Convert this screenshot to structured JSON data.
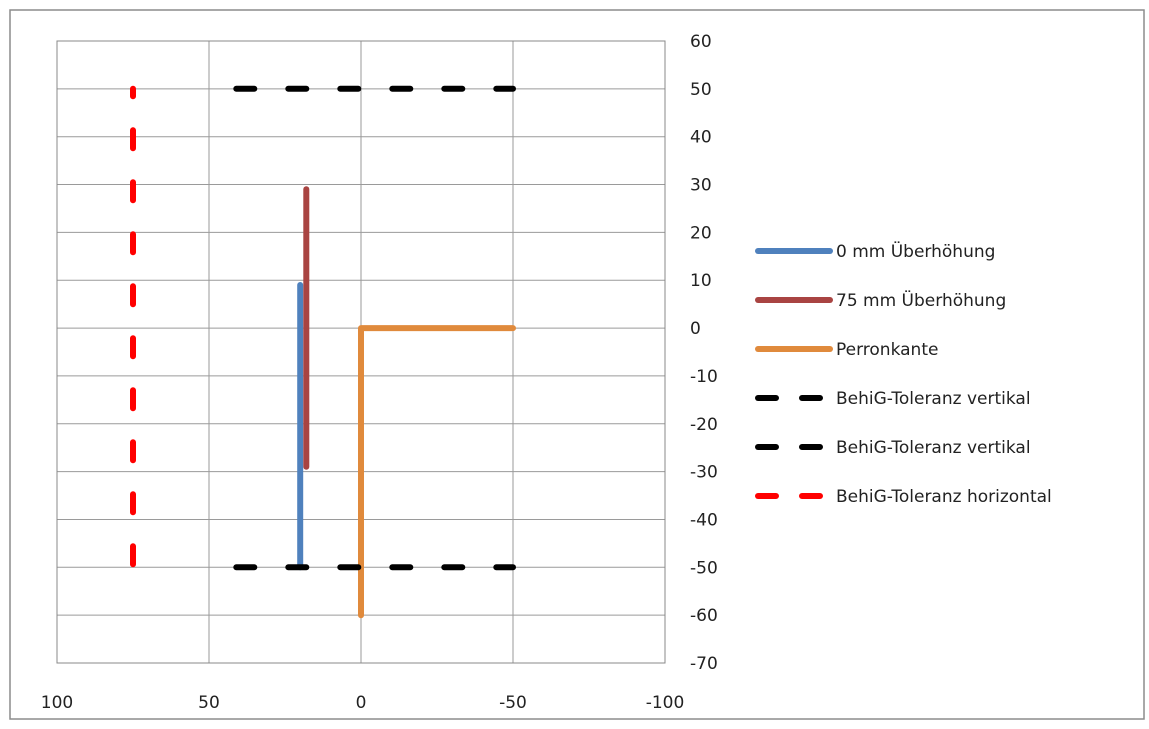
{
  "chart_data": {
    "type": "line",
    "title": "",
    "xlabel": "",
    "ylabel": "",
    "xlim": [
      -100,
      100
    ],
    "x_reversed": true,
    "ylim": [
      -70,
      60
    ],
    "y_axis_position": "right",
    "x_ticks": [
      100,
      50,
      0,
      -50,
      -100
    ],
    "x_tick_labels": [
      "100",
      "50",
      "0",
      "-50",
      "-100"
    ],
    "y_ticks": [
      60,
      50,
      40,
      30,
      20,
      10,
      0,
      -10,
      -20,
      -30,
      -40,
      -50,
      -60,
      -70
    ],
    "y_tick_labels": [
      "60",
      "50",
      "40",
      "30",
      "20",
      "10",
      "0",
      "-10",
      "-20",
      "-30",
      "-40",
      "-50",
      "-60",
      "-70"
    ],
    "grid": true,
    "legend_position": "right",
    "series": [
      {
        "name": "0 mm Überhöhung",
        "color": "#4f81bd",
        "dash": "solid",
        "points": [
          [
            20,
            -50
          ],
          [
            20,
            9
          ]
        ]
      },
      {
        "name": "75 mm Überhöhung",
        "color": "#a94442",
        "dash": "solid",
        "points": [
          [
            18,
            -29
          ],
          [
            18,
            29
          ]
        ]
      },
      {
        "name": "Perronkante",
        "color": "#e08a3c",
        "dash": "solid",
        "points": [
          [
            0,
            -60
          ],
          [
            0,
            0
          ],
          [
            -50,
            0
          ]
        ]
      },
      {
        "name": "BehiG-Toleranz vertikal",
        "color": "#000000",
        "dash": "dashed",
        "points": [
          [
            42,
            50
          ],
          [
            -50,
            50
          ]
        ]
      },
      {
        "name": "BehiG-Toleranz vertikal",
        "color": "#000000",
        "dash": "dashed",
        "points": [
          [
            42,
            -50
          ],
          [
            -50,
            -50
          ]
        ]
      },
      {
        "name": "BehiG-Toleranz horizontal",
        "color": "#ff0000",
        "dash": "dashed",
        "points": [
          [
            75,
            -50
          ],
          [
            75,
            50
          ]
        ]
      }
    ]
  }
}
